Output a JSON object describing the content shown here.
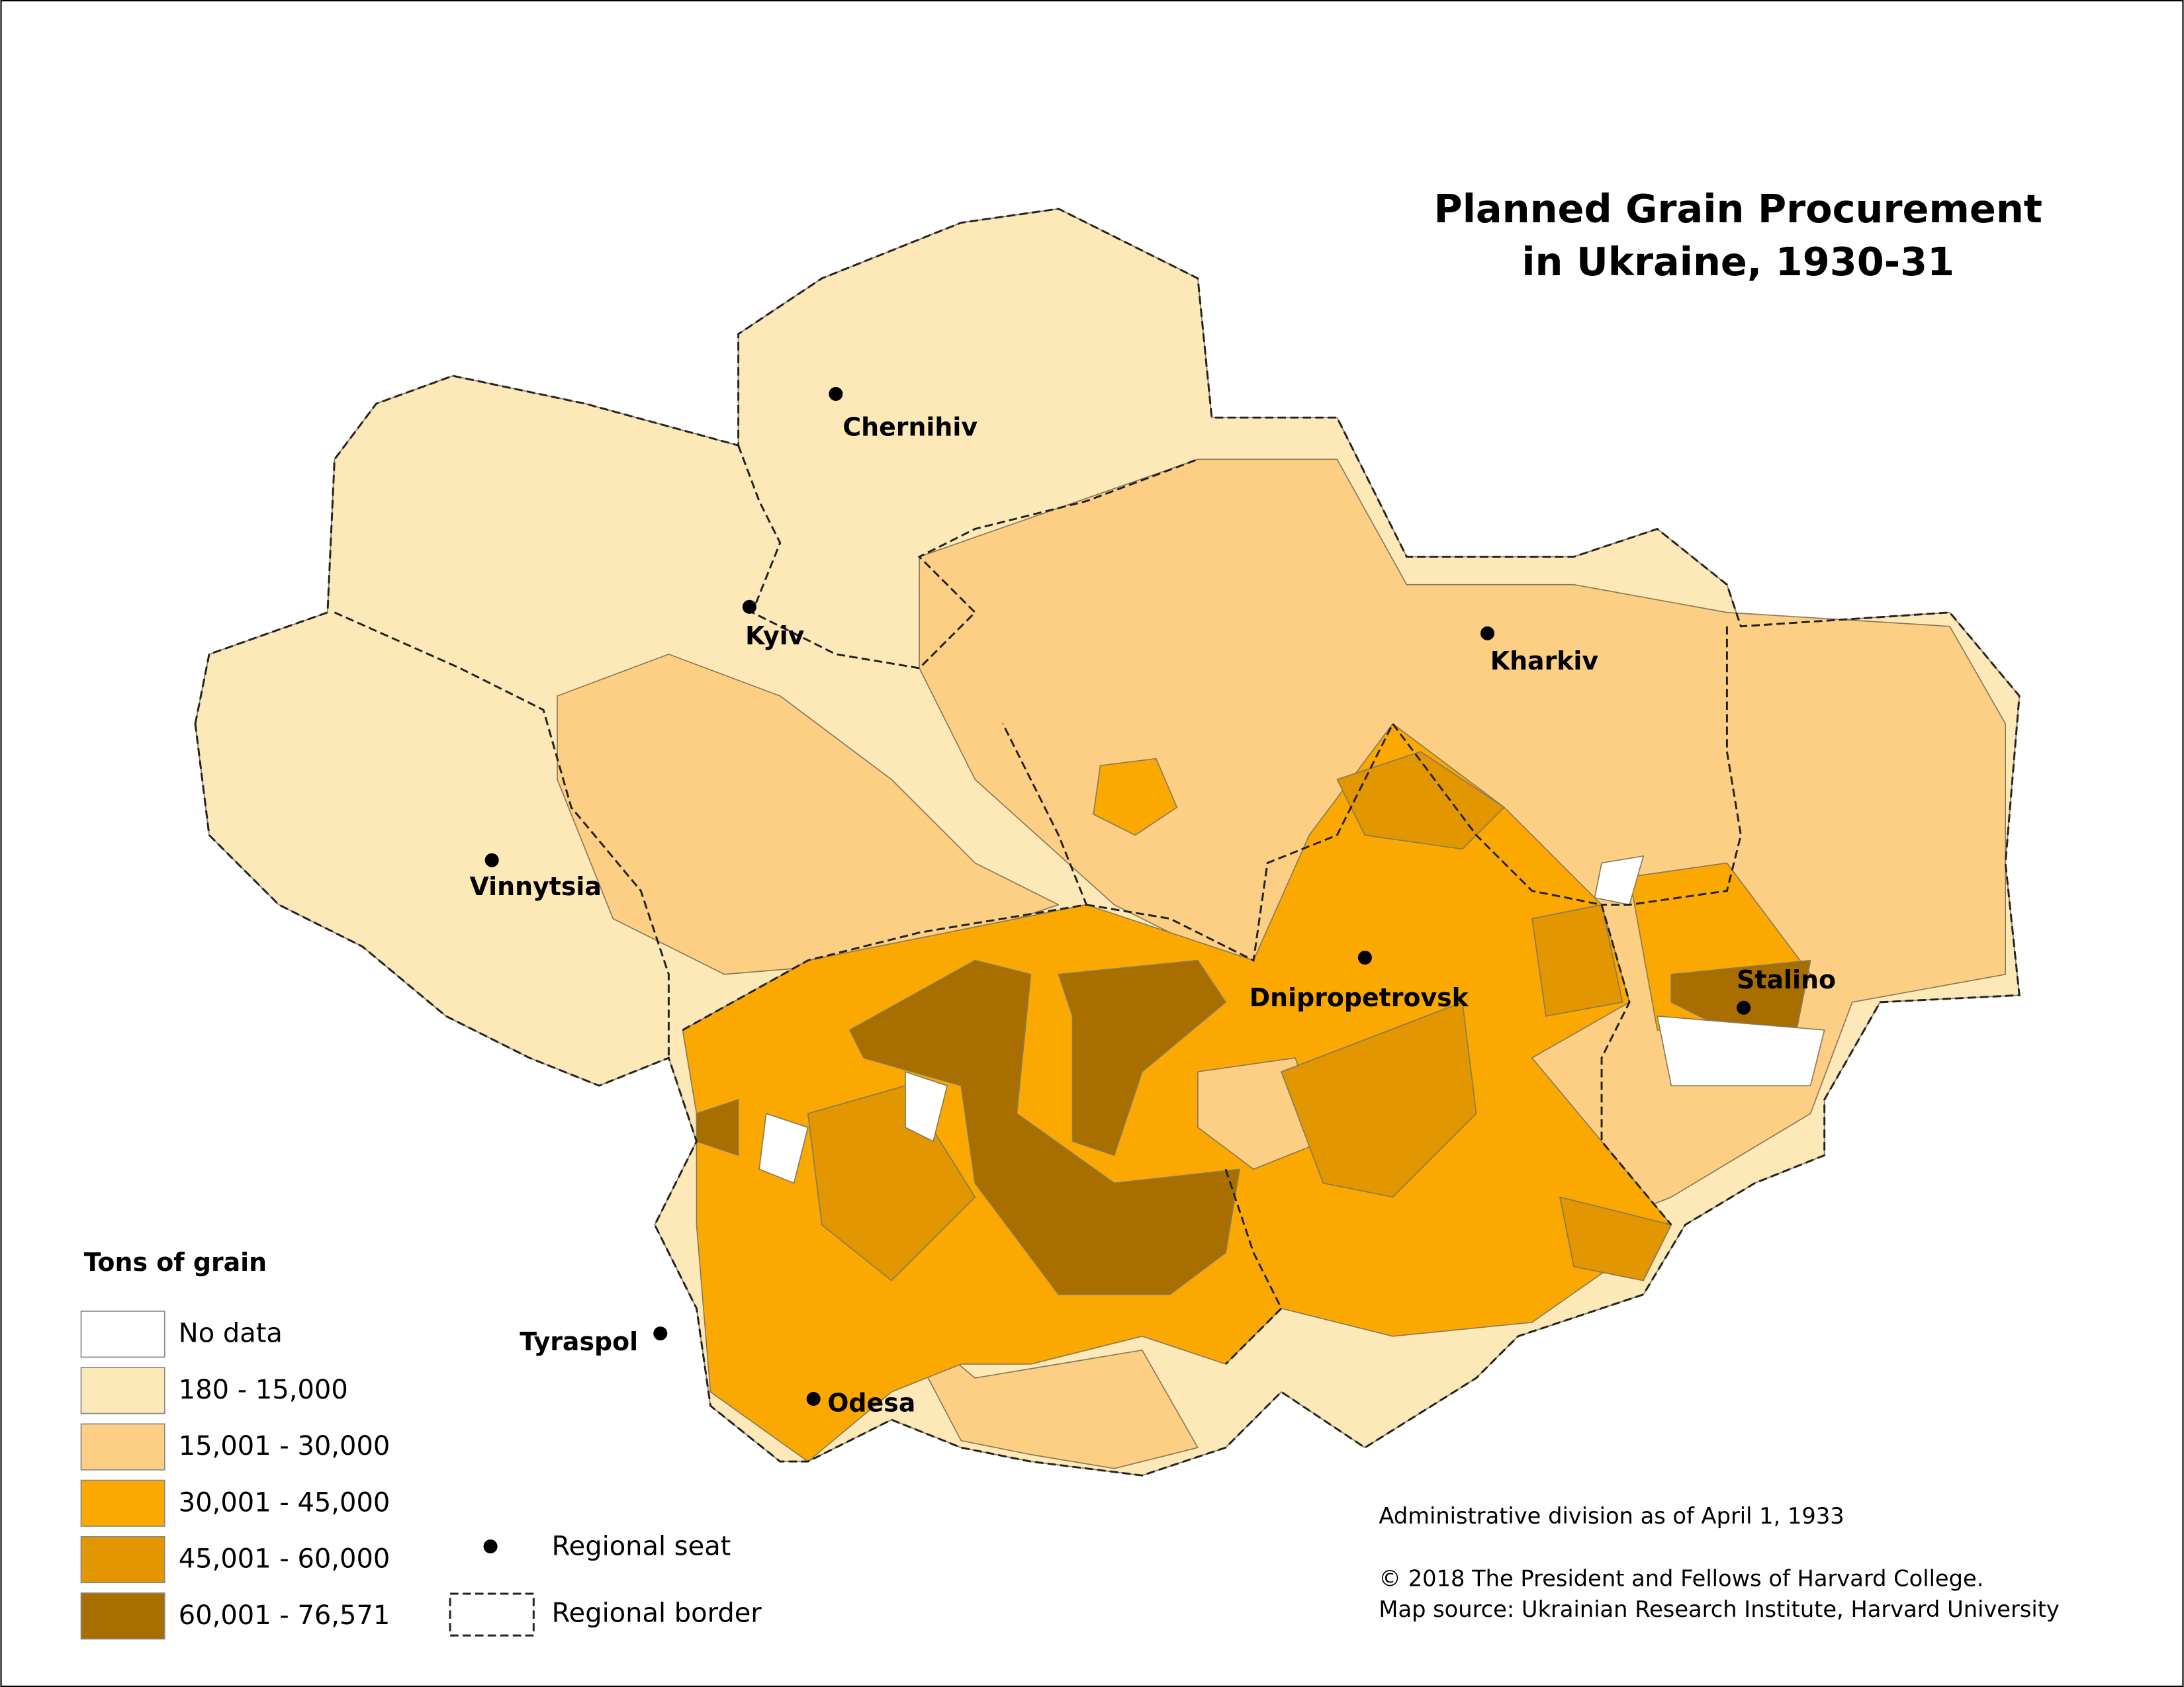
{
  "title": [
    "Planned Grain Procurement",
    "in Ukraine, 1930-31"
  ],
  "cities": [
    "Chernihiv",
    "Kyiv",
    "Kharkiv",
    "Vinnytsia",
    "Dnipropetrovsk",
    "Stalino",
    "Odesa",
    "Tyraspol"
  ],
  "legend": {
    "title": "Tons of grain",
    "classes": [
      {
        "label": "No data",
        "color": "#ffffff"
      },
      {
        "label": "180 - 15,000",
        "color": "#fde8b8"
      },
      {
        "label": "15,001 - 30,000",
        "color": "#fccf84"
      },
      {
        "label": "30,001 - 45,000",
        "color": "#fba900"
      },
      {
        "label": "45,001 - 60,000",
        "color": "#e29600"
      },
      {
        "label": "60,001 - 76,571",
        "color": "#a86e00"
      }
    ]
  },
  "symbols": [
    "Regional seat",
    "Regional border"
  ],
  "notes": [
    "Administrative division as of April 1, 1933",
    "© 2018 The President and Fellows of Harvard College.",
    "Map source: Ukrainian Research Institute, Harvard University"
  ]
}
